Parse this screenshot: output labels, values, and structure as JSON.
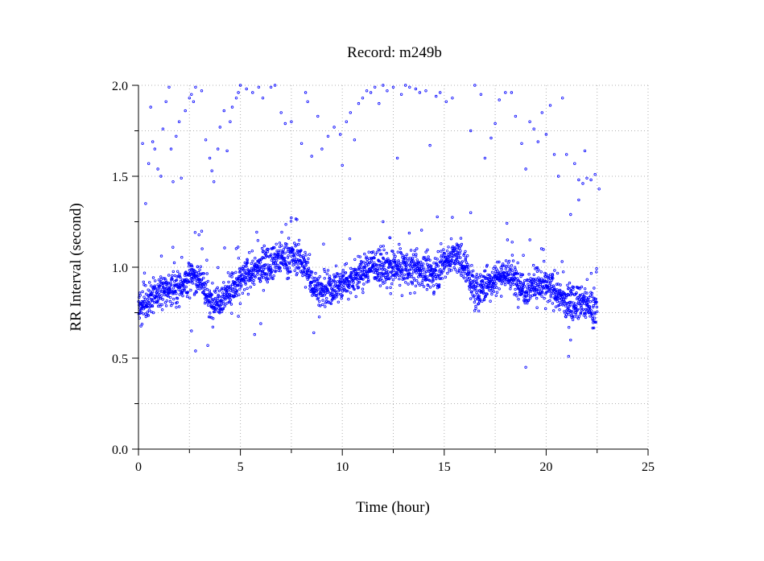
{
  "chart_data": {
    "type": "scatter",
    "title": "Record:  m249b",
    "xlabel": "Time (hour)",
    "ylabel": "RR Interval (second)",
    "xlim": [
      0,
      25
    ],
    "ylim": [
      0,
      2
    ],
    "xticks": [
      0,
      5,
      10,
      15,
      20,
      25
    ],
    "xtick_labels": [
      "0",
      "5",
      "10",
      "15",
      "20",
      "25"
    ],
    "yticks": [
      0.0,
      0.5,
      1.0,
      1.5,
      2.0
    ],
    "ytick_labels": [
      "0.0",
      "0.5",
      "1.0",
      "1.5",
      "2.0"
    ],
    "grid": true,
    "marker": "open-circle",
    "color": "#0000ff",
    "series": [
      {
        "trend": [
          [
            0.0,
            0.78
          ],
          [
            0.5,
            0.82
          ],
          [
            1.0,
            0.86
          ],
          [
            1.5,
            0.88
          ],
          [
            2.0,
            0.9
          ],
          [
            2.5,
            0.94
          ],
          [
            3.0,
            0.95
          ],
          [
            3.5,
            0.8
          ],
          [
            4.0,
            0.83
          ],
          [
            4.5,
            0.87
          ],
          [
            5.0,
            0.92
          ],
          [
            5.5,
            0.97
          ],
          [
            6.0,
            1.0
          ],
          [
            6.5,
            1.03
          ],
          [
            7.0,
            1.05
          ],
          [
            7.5,
            1.06
          ],
          [
            8.0,
            1.04
          ],
          [
            8.5,
            0.92
          ],
          [
            9.0,
            0.86
          ],
          [
            9.5,
            0.88
          ],
          [
            10.0,
            0.91
          ],
          [
            10.5,
            0.94
          ],
          [
            11.0,
            0.97
          ],
          [
            11.5,
            1.02
          ],
          [
            12.0,
            0.98
          ],
          [
            12.5,
            0.99
          ],
          [
            13.0,
            1.0
          ],
          [
            13.5,
            0.99
          ],
          [
            14.0,
            0.98
          ],
          [
            14.5,
            0.96
          ],
          [
            15.0,
            1.03
          ],
          [
            15.5,
            1.06
          ],
          [
            16.0,
            1.02
          ],
          [
            16.5,
            0.86
          ],
          [
            17.0,
            0.9
          ],
          [
            17.5,
            0.94
          ],
          [
            18.0,
            0.97
          ],
          [
            18.5,
            0.93
          ],
          [
            19.0,
            0.88
          ],
          [
            19.5,
            0.91
          ],
          [
            20.0,
            0.89
          ],
          [
            20.5,
            0.86
          ],
          [
            21.0,
            0.8
          ],
          [
            21.5,
            0.82
          ],
          [
            22.0,
            0.79
          ],
          [
            22.5,
            0.78
          ]
        ],
        "spread": 0.09,
        "n_points": 2600,
        "outliers": [
          [
            0.2,
            1.68
          ],
          [
            0.35,
            1.35
          ],
          [
            0.5,
            1.57
          ],
          [
            0.6,
            1.88
          ],
          [
            0.7,
            1.69
          ],
          [
            0.8,
            1.65
          ],
          [
            0.95,
            1.54
          ],
          [
            1.1,
            1.5
          ],
          [
            1.2,
            1.76
          ],
          [
            1.35,
            1.91
          ],
          [
            1.5,
            1.99
          ],
          [
            1.6,
            1.65
          ],
          [
            1.7,
            1.47
          ],
          [
            1.85,
            1.72
          ],
          [
            2.0,
            1.8
          ],
          [
            2.1,
            1.49
          ],
          [
            2.3,
            1.86
          ],
          [
            2.5,
            1.93
          ],
          [
            2.6,
            1.95
          ],
          [
            2.7,
            1.91
          ],
          [
            2.8,
            1.99
          ],
          [
            3.1,
            1.97
          ],
          [
            3.3,
            1.7
          ],
          [
            3.5,
            1.6
          ],
          [
            3.6,
            1.53
          ],
          [
            3.7,
            1.47
          ],
          [
            3.9,
            1.65
          ],
          [
            4.0,
            1.77
          ],
          [
            4.2,
            1.86
          ],
          [
            4.35,
            1.64
          ],
          [
            4.5,
            1.8
          ],
          [
            4.6,
            1.88
          ],
          [
            4.8,
            1.93
          ],
          [
            4.9,
            1.96
          ],
          [
            5.0,
            2.0
          ],
          [
            5.3,
            1.98
          ],
          [
            5.6,
            1.96
          ],
          [
            5.9,
            1.99
          ],
          [
            6.1,
            1.93
          ],
          [
            6.5,
            1.99
          ],
          [
            6.7,
            2.0
          ],
          [
            7.0,
            1.85
          ],
          [
            7.2,
            1.79
          ],
          [
            7.5,
            1.8
          ],
          [
            8.0,
            1.68
          ],
          [
            8.2,
            1.96
          ],
          [
            8.3,
            1.91
          ],
          [
            8.5,
            1.61
          ],
          [
            8.8,
            1.83
          ],
          [
            9.0,
            1.65
          ],
          [
            9.3,
            1.72
          ],
          [
            9.6,
            1.77
          ],
          [
            9.9,
            1.73
          ],
          [
            10.0,
            1.56
          ],
          [
            10.2,
            1.8
          ],
          [
            10.4,
            1.85
          ],
          [
            10.6,
            1.7
          ],
          [
            10.8,
            1.9
          ],
          [
            11.0,
            1.93
          ],
          [
            11.2,
            1.97
          ],
          [
            11.4,
            1.96
          ],
          [
            11.6,
            1.99
          ],
          [
            11.8,
            1.9
          ],
          [
            12.0,
            2.0
          ],
          [
            12.2,
            1.97
          ],
          [
            12.5,
            1.99
          ],
          [
            12.7,
            1.6
          ],
          [
            12.9,
            1.95
          ],
          [
            13.1,
            2.0
          ],
          [
            13.3,
            1.99
          ],
          [
            13.6,
            1.98
          ],
          [
            13.8,
            1.96
          ],
          [
            14.1,
            1.97
          ],
          [
            14.3,
            1.67
          ],
          [
            14.6,
            1.94
          ],
          [
            14.8,
            1.96
          ],
          [
            15.1,
            1.91
          ],
          [
            15.4,
            1.93
          ],
          [
            16.3,
            1.75
          ],
          [
            16.5,
            2.0
          ],
          [
            16.8,
            1.95
          ],
          [
            17.0,
            1.6
          ],
          [
            17.3,
            1.71
          ],
          [
            17.5,
            1.79
          ],
          [
            17.7,
            1.92
          ],
          [
            18.0,
            1.96
          ],
          [
            18.3,
            1.96
          ],
          [
            18.5,
            1.83
          ],
          [
            18.8,
            1.68
          ],
          [
            19.0,
            1.54
          ],
          [
            19.2,
            1.8
          ],
          [
            19.4,
            1.76
          ],
          [
            19.6,
            1.69
          ],
          [
            19.8,
            1.85
          ],
          [
            20.0,
            1.73
          ],
          [
            20.2,
            1.89
          ],
          [
            20.4,
            1.62
          ],
          [
            20.6,
            1.5
          ],
          [
            20.8,
            1.93
          ],
          [
            21.0,
            1.62
          ],
          [
            21.2,
            1.29
          ],
          [
            21.4,
            1.57
          ],
          [
            21.6,
            1.48
          ],
          [
            21.8,
            1.46
          ],
          [
            22.0,
            1.49
          ],
          [
            22.2,
            1.48
          ],
          [
            22.4,
            1.51
          ],
          [
            22.6,
            1.43
          ],
          [
            21.6,
            1.37
          ],
          [
            21.9,
            1.64
          ],
          [
            2.8,
            0.54
          ],
          [
            3.4,
            0.57
          ],
          [
            4.9,
            0.73
          ],
          [
            5.7,
            0.63
          ],
          [
            6.0,
            0.69
          ],
          [
            8.6,
            0.64
          ],
          [
            12.0,
            1.25
          ],
          [
            16.3,
            1.3
          ],
          [
            19.0,
            0.45
          ],
          [
            21.1,
            0.51
          ],
          [
            21.2,
            0.6
          ],
          [
            2.6,
            0.65
          ]
        ]
      }
    ]
  }
}
